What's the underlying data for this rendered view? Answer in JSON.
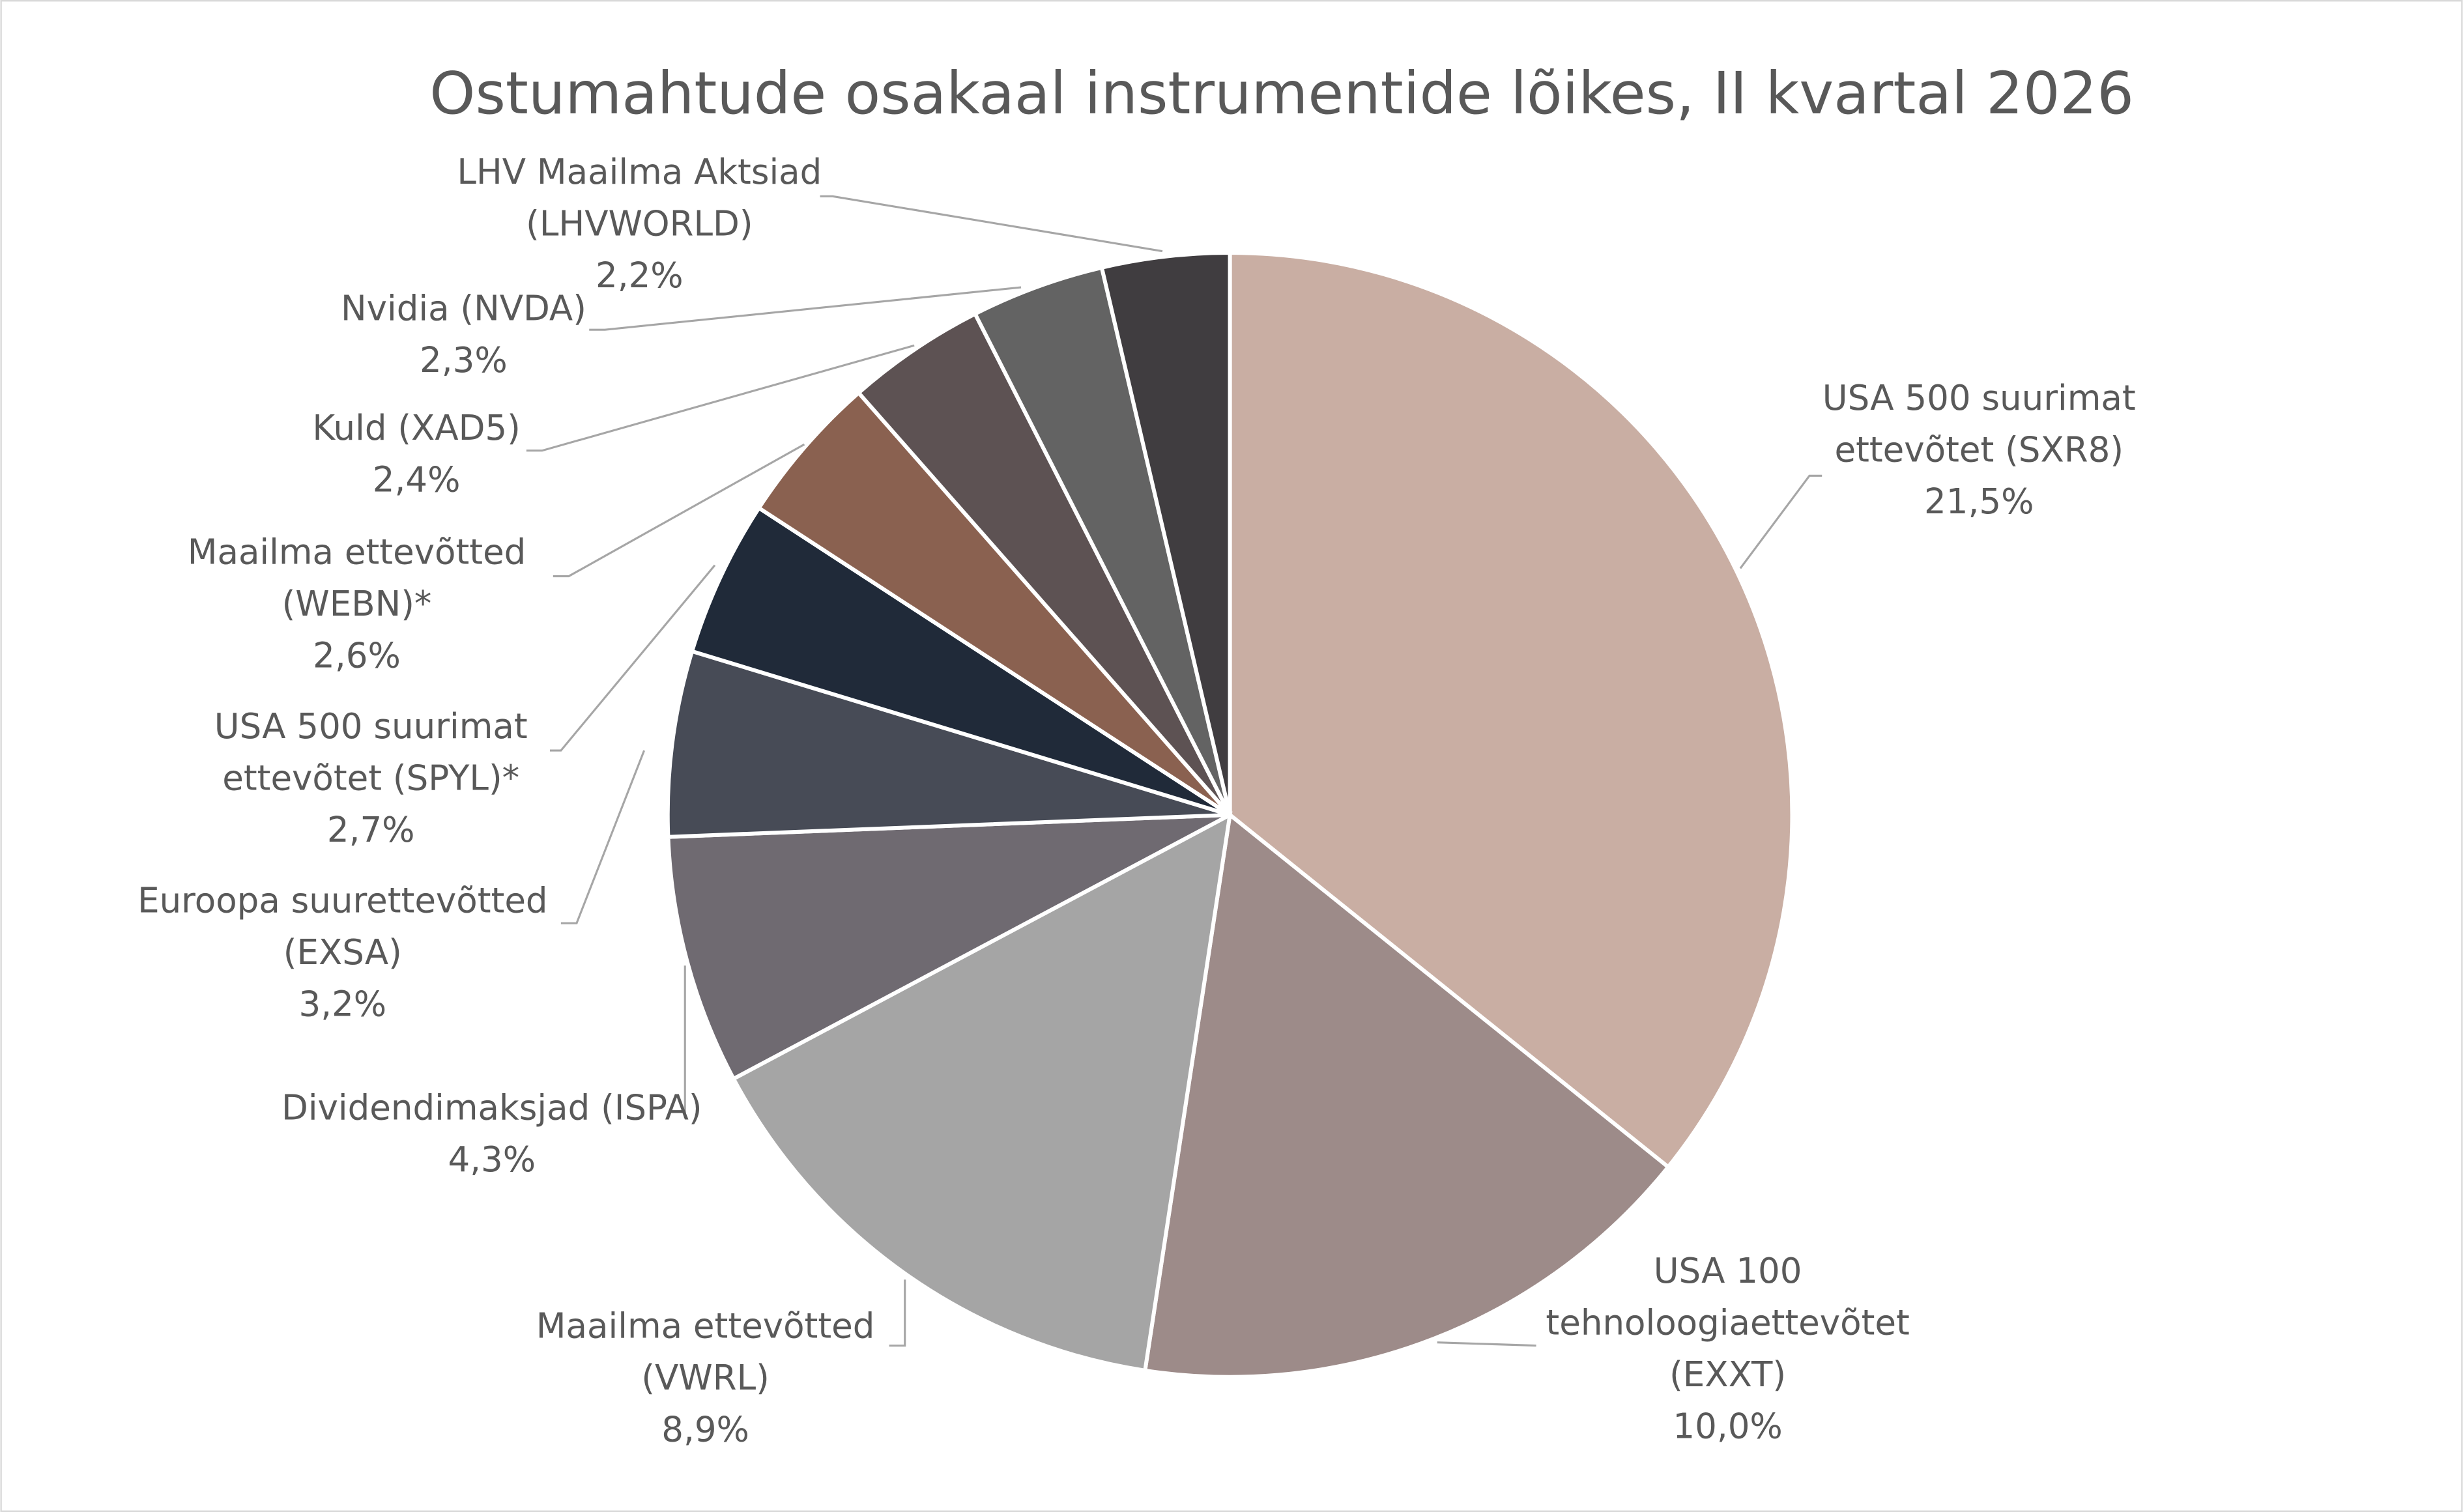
{
  "chart_data": {
    "type": "pie",
    "title": "Ostumahtude osakaal instrumentide lõikes, II kvartal 2026",
    "categories": [
      "USA 500 suurimat\nettevõtet (SXR8)",
      "USA 100\ntehnoloogiaettevõtet\n(EXXT)",
      "Maailma ettevõtted\n(VWRL)",
      "Dividendimaksjad (ISPA)",
      "Euroopa suurettevõtted\n(EXSA)",
      "USA 500 suurimat\nettevõtet (SPYL)*",
      "Maailma ettevõtted\n(WEBN)*",
      "Kuld (XAD5)",
      "Nvidia (NVDA)",
      "LHV Maailma Aktsiad\n(LHVWORLD)"
    ],
    "values": [
      21.5,
      10.0,
      8.9,
      4.3,
      3.2,
      2.7,
      2.6,
      2.4,
      2.3,
      2.2
    ],
    "value_labels": [
      "21,5%",
      "10,0%",
      "8,9%",
      "4,3%",
      "3,2%",
      "2,7%",
      "2,6%",
      "2,4%",
      "2,3%",
      "2,2%"
    ],
    "colors": [
      "#c9aea3",
      "#9d8b89",
      "#a5a5a5",
      "#6f6a71",
      "#474b56",
      "#202a39",
      "#8a6150",
      "#5d5253",
      "#636363",
      "#403d40"
    ]
  }
}
